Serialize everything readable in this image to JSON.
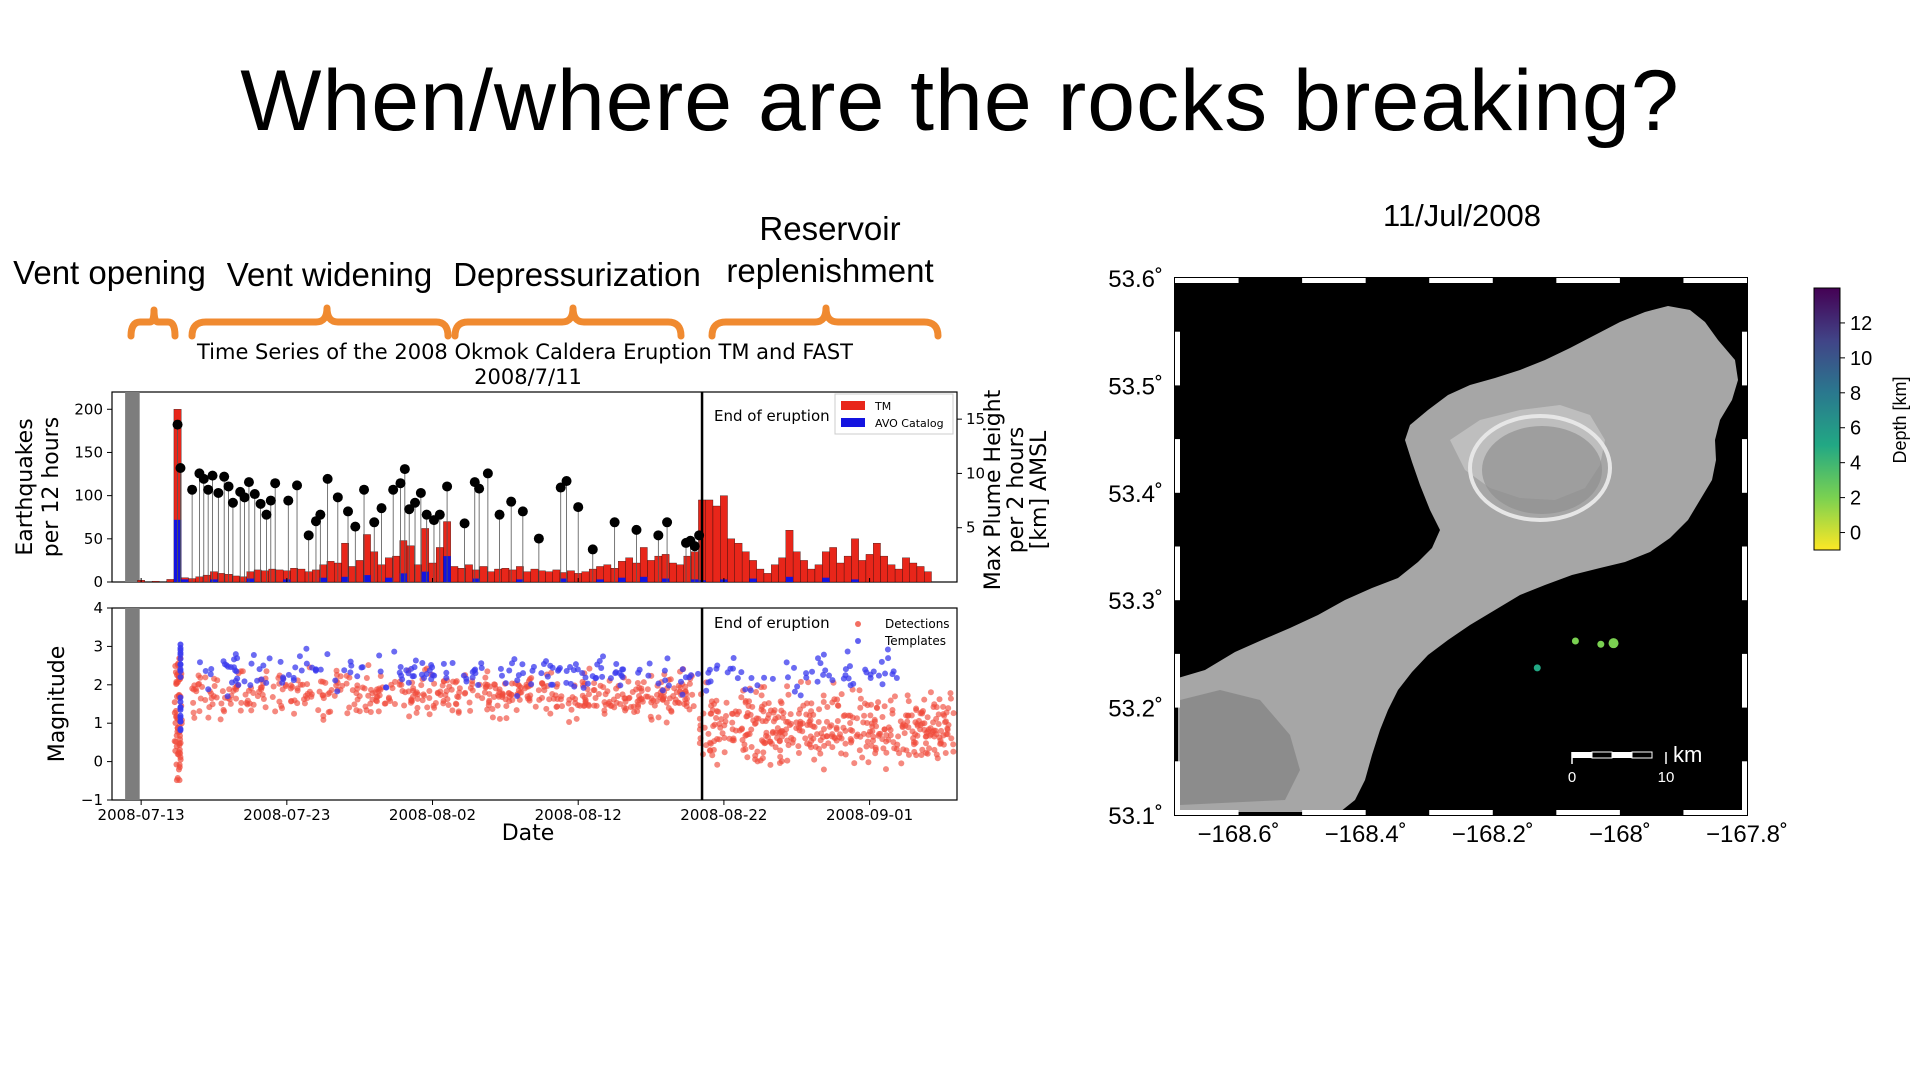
{
  "slide": {
    "title": "When/where are the rocks breaking?"
  },
  "phases": [
    {
      "label": "Vent opening"
    },
    {
      "label": "Vent widening"
    },
    {
      "label": "Depressurization"
    },
    {
      "label_line1": "Reservoir",
      "label_line2": "replenishment"
    }
  ],
  "colors": {
    "accent_orange": "#f08a30",
    "tm_red": "#e8261a",
    "avo_blue": "#1414e0",
    "plume_black": "#000000",
    "detection_red": "#f04a3a",
    "template_blue": "#3a3aee"
  },
  "chart_data": [
    {
      "type": "bar",
      "title": "Time Series of the 2008 Okmok Caldera Eruption TM and FAST",
      "subtitle": "2008/7/11",
      "ylabel": "Earthquakes per 12 hours",
      "y2label": "Max Plume Height per 2 hours [km] AMSL",
      "ylim": [
        0,
        220
      ],
      "y2lim": [
        0,
        17.5
      ],
      "yticks": [
        "0",
        "50",
        "100",
        "150",
        "200"
      ],
      "y2ticks": [
        "5",
        "10",
        "15"
      ],
      "annotation": "End of eruption",
      "legend": [
        "TM",
        "AVO Catalog"
      ],
      "legend_position": "top-right",
      "xlim_days": [
        -2,
        56
      ],
      "end_of_eruption_day": 38.5,
      "tm_bars": [
        [
          0,
          2
        ],
        [
          1,
          1
        ],
        [
          2,
          3
        ],
        [
          2.5,
          200
        ],
        [
          3,
          5
        ],
        [
          3.5,
          4
        ],
        [
          4,
          6
        ],
        [
          4.5,
          8
        ],
        [
          5,
          12
        ],
        [
          5.5,
          10
        ],
        [
          6,
          9
        ],
        [
          6.5,
          7
        ],
        [
          7,
          6
        ],
        [
          7.5,
          12
        ],
        [
          8,
          14
        ],
        [
          8.5,
          13
        ],
        [
          9,
          15
        ],
        [
          9.5,
          14
        ],
        [
          10,
          13
        ],
        [
          10.5,
          16
        ],
        [
          11,
          15
        ],
        [
          11.5,
          12
        ],
        [
          12,
          14
        ],
        [
          12.5,
          20
        ],
        [
          13,
          24
        ],
        [
          13.5,
          22
        ],
        [
          14,
          45
        ],
        [
          14.5,
          18
        ],
        [
          15,
          25
        ],
        [
          15.5,
          55
        ],
        [
          16,
          35
        ],
        [
          16.5,
          20
        ],
        [
          17,
          28
        ],
        [
          17.5,
          30
        ],
        [
          18,
          48
        ],
        [
          18.5,
          42
        ],
        [
          19,
          20
        ],
        [
          19.5,
          62
        ],
        [
          20,
          22
        ],
        [
          20.5,
          40
        ],
        [
          21,
          70
        ],
        [
          21.5,
          18
        ],
        [
          22,
          16
        ],
        [
          22.5,
          20
        ],
        [
          23,
          14
        ],
        [
          23.5,
          18
        ],
        [
          24,
          12
        ],
        [
          24.5,
          15
        ],
        [
          25,
          16
        ],
        [
          25.5,
          14
        ],
        [
          26,
          18
        ],
        [
          26.5,
          12
        ],
        [
          27,
          15
        ],
        [
          27.5,
          13
        ],
        [
          28,
          12
        ],
        [
          28.5,
          14
        ],
        [
          29,
          11
        ],
        [
          29.5,
          13
        ],
        [
          30,
          10
        ],
        [
          30.5,
          12
        ],
        [
          31,
          15
        ],
        [
          31.5,
          18
        ],
        [
          32,
          20
        ],
        [
          32.5,
          16
        ],
        [
          33,
          24
        ],
        [
          33.5,
          28
        ],
        [
          34,
          22
        ],
        [
          34.5,
          40
        ],
        [
          35,
          25
        ],
        [
          35.5,
          30
        ],
        [
          36,
          32
        ],
        [
          36.5,
          22
        ],
        [
          37,
          20
        ],
        [
          37.5,
          30
        ],
        [
          38,
          35
        ],
        [
          38.5,
          95
        ],
        [
          39,
          95
        ],
        [
          39.5,
          88
        ],
        [
          40,
          100
        ],
        [
          40.5,
          50
        ],
        [
          41,
          45
        ],
        [
          41.5,
          35
        ],
        [
          42,
          25
        ],
        [
          42.5,
          15
        ],
        [
          43,
          10
        ],
        [
          43.5,
          20
        ],
        [
          44,
          28
        ],
        [
          44.5,
          60
        ],
        [
          45,
          35
        ],
        [
          45.5,
          25
        ],
        [
          46,
          15
        ],
        [
          46.5,
          20
        ],
        [
          47,
          35
        ],
        [
          47.5,
          40
        ],
        [
          48,
          22
        ],
        [
          48.5,
          30
        ],
        [
          49,
          50
        ],
        [
          49.5,
          25
        ],
        [
          50,
          32
        ],
        [
          50.5,
          45
        ],
        [
          51,
          30
        ],
        [
          51.5,
          20
        ],
        [
          52,
          15
        ],
        [
          52.5,
          28
        ],
        [
          53,
          22
        ],
        [
          53.5,
          18
        ],
        [
          54,
          12
        ]
      ],
      "avo_bars": [
        [
          2.5,
          72
        ],
        [
          3,
          3
        ],
        [
          5,
          3
        ],
        [
          7.5,
          4
        ],
        [
          10,
          3
        ],
        [
          12.5,
          5
        ],
        [
          14,
          6
        ],
        [
          15.5,
          8
        ],
        [
          17,
          5
        ],
        [
          18,
          10
        ],
        [
          19.5,
          12
        ],
        [
          21,
          30
        ],
        [
          23,
          4
        ],
        [
          26,
          3
        ],
        [
          29,
          4
        ],
        [
          31.5,
          3
        ],
        [
          33,
          5
        ],
        [
          34.5,
          6
        ],
        [
          36,
          4
        ],
        [
          38,
          3
        ],
        [
          38.5,
          2
        ],
        [
          40,
          3
        ],
        [
          42,
          4
        ],
        [
          44.5,
          6
        ],
        [
          47,
          5
        ],
        [
          49,
          3
        ]
      ],
      "plume_points": [
        [
          2.5,
          14.5
        ],
        [
          2.7,
          10.5
        ],
        [
          3.5,
          8.5
        ],
        [
          4,
          10
        ],
        [
          4.3,
          9.5
        ],
        [
          4.6,
          8.5
        ],
        [
          4.9,
          9.8
        ],
        [
          5.3,
          8.2
        ],
        [
          5.7,
          9.7
        ],
        [
          6,
          8.8
        ],
        [
          6.3,
          7.3
        ],
        [
          6.8,
          8.3
        ],
        [
          7.1,
          7.8
        ],
        [
          7.4,
          9.2
        ],
        [
          7.8,
          8.1
        ],
        [
          8.2,
          7.2
        ],
        [
          8.6,
          6.2
        ],
        [
          8.9,
          7.5
        ],
        [
          9.2,
          9.1
        ],
        [
          10.1,
          7.5
        ],
        [
          10.7,
          8.9
        ],
        [
          11.5,
          4.3
        ],
        [
          12,
          5.6
        ],
        [
          12.3,
          6.2
        ],
        [
          12.8,
          9.5
        ],
        [
          13.5,
          7.8
        ],
        [
          14.2,
          6.5
        ],
        [
          14.7,
          5.1
        ],
        [
          15.3,
          8.5
        ],
        [
          16,
          5.5
        ],
        [
          16.5,
          6.8
        ],
        [
          17.3,
          8.5
        ],
        [
          17.8,
          9.1
        ],
        [
          18.1,
          10.4
        ],
        [
          18.4,
          6.7
        ],
        [
          18.8,
          7.3
        ],
        [
          19.2,
          8.2
        ],
        [
          19.6,
          6.2
        ],
        [
          20.1,
          5.7
        ],
        [
          20.5,
          6.2
        ],
        [
          21,
          8.8
        ],
        [
          22.2,
          5.4
        ],
        [
          22.9,
          9.2
        ],
        [
          23.2,
          8.6
        ],
        [
          23.8,
          10
        ],
        [
          24.6,
          6.2
        ],
        [
          25.4,
          7.4
        ],
        [
          26.2,
          6.5
        ],
        [
          27.3,
          4
        ],
        [
          28.8,
          8.7
        ],
        [
          29.2,
          9.3
        ],
        [
          30,
          6.9
        ],
        [
          31,
          3
        ],
        [
          32.5,
          5.5
        ],
        [
          34,
          4.8
        ],
        [
          35.5,
          4.3
        ],
        [
          36.1,
          5.5
        ],
        [
          37.4,
          3.6
        ],
        [
          37.7,
          3.8
        ],
        [
          38,
          3.3
        ],
        [
          38.3,
          4.3
        ]
      ],
      "xticks": [
        "2008-07-13",
        "2008-07-23",
        "2008-08-02",
        "2008-08-12",
        "2008-08-22",
        "2008-09-01"
      ]
    },
    {
      "type": "scatter",
      "ylabel": "Magnitude",
      "xlabel": "Date",
      "ylim": [
        -1,
        4
      ],
      "yticks": [
        "-1",
        "0",
        "1",
        "2",
        "3",
        "4"
      ],
      "annotation": "End of eruption",
      "legend": [
        "Detections",
        "Templates"
      ],
      "legend_position": "top-right",
      "xticks": [
        "2008-07-13",
        "2008-07-23",
        "2008-08-02",
        "2008-08-12",
        "2008-08-22",
        "2008-09-01"
      ],
      "series": [
        {
          "name": "Detections",
          "description_range": {
            "x": [
              1,
              56
            ],
            "y": [
              -0.5,
              3.6
            ]
          }
        },
        {
          "name": "Templates",
          "description_range": {
            "x": [
              2.5,
              38
            ],
            "y": [
              0.8,
              3.8
            ]
          }
        }
      ]
    },
    {
      "type": "scatter",
      "title": "11/Jul/2008",
      "xticks": [
        "−168.6˚",
        "−168.4˚",
        "−168.2˚",
        "−168˚",
        "−167.8˚"
      ],
      "yticks": [
        "53.6˚",
        "53.5˚",
        "53.4˚",
        "53.3˚",
        "53.2˚",
        "53.1˚"
      ],
      "xlim": [
        -168.7,
        -167.8
      ],
      "ylim": [
        53.1,
        53.6
      ],
      "colorbar_label": "Depth [km]",
      "colorbar_ticks": [
        "12",
        "10",
        "8",
        "6",
        "4",
        "2",
        "0"
      ],
      "colorbar_range": [
        -1,
        14
      ],
      "scale_label": "km",
      "scale_ticks": [
        "0",
        "10"
      ],
      "points": [
        {
          "lon": -168.13,
          "lat": 53.237,
          "depth": 5
        },
        {
          "lon": -168.07,
          "lat": 53.262,
          "depth": 1.5
        },
        {
          "lon": -168.03,
          "lat": 53.259,
          "depth": 3
        },
        {
          "lon": -168.01,
          "lat": 53.26,
          "depth": 0.5
        }
      ]
    }
  ]
}
